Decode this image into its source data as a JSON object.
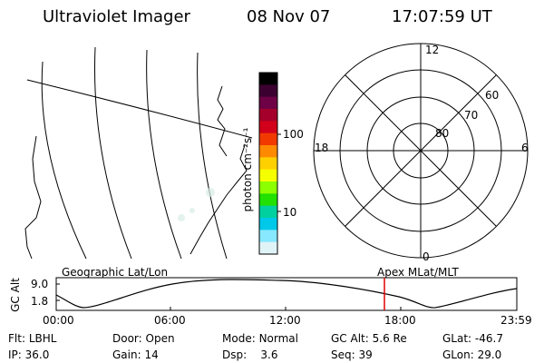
{
  "header": {
    "title": "Ultraviolet Imager",
    "date": "08 Nov 07",
    "time": "17:07:59 UT"
  },
  "colorbar": {
    "label": "photon cm⁻²s⁻¹",
    "ticks": [
      "100",
      "10"
    ],
    "colors": [
      "#000000",
      "#3b0030",
      "#6e0045",
      "#a5002b",
      "#d2001a",
      "#f23a00",
      "#ff8a00",
      "#ffd000",
      "#f6ff00",
      "#8cff00",
      "#22e000",
      "#00d0a0",
      "#00c8e8",
      "#88e8ff",
      "#e0f4f8"
    ]
  },
  "polar": {
    "mlt_labels": {
      "top": "12",
      "left": "18",
      "right": "6",
      "bottom": "0"
    },
    "lat_labels": [
      "80",
      "70",
      "60"
    ]
  },
  "timeline": {
    "left_label": "Geographic Lat/Lon",
    "right_label": "Apex MLat/MLT",
    "axis_label": "GC Alt",
    "y_ticks": [
      "9.0",
      "1.8"
    ],
    "x_ticks": [
      "00:00",
      "06:00",
      "12:00",
      "18:00",
      "23:59"
    ],
    "marker_time": "17:07:59",
    "marker_color": "#e00000"
  },
  "info": {
    "row1": [
      {
        "label": "Flt:",
        "value": "LBHL"
      },
      {
        "label": "Door:",
        "value": "Open"
      },
      {
        "label": "Mode:",
        "value": "Normal"
      },
      {
        "label": "GC Alt:",
        "value": "5.6 Re"
      },
      {
        "label": "GLat:",
        "value": "-46.7"
      }
    ],
    "row2": [
      {
        "label": "IP:",
        "value": "36.0"
      },
      {
        "label": "Gain:",
        "value": "14"
      },
      {
        "label": "Dsp:",
        "value": "3.6"
      },
      {
        "label": "Seq:",
        "value": "39"
      },
      {
        "label": "GLon:",
        "value": "29.0"
      }
    ]
  }
}
